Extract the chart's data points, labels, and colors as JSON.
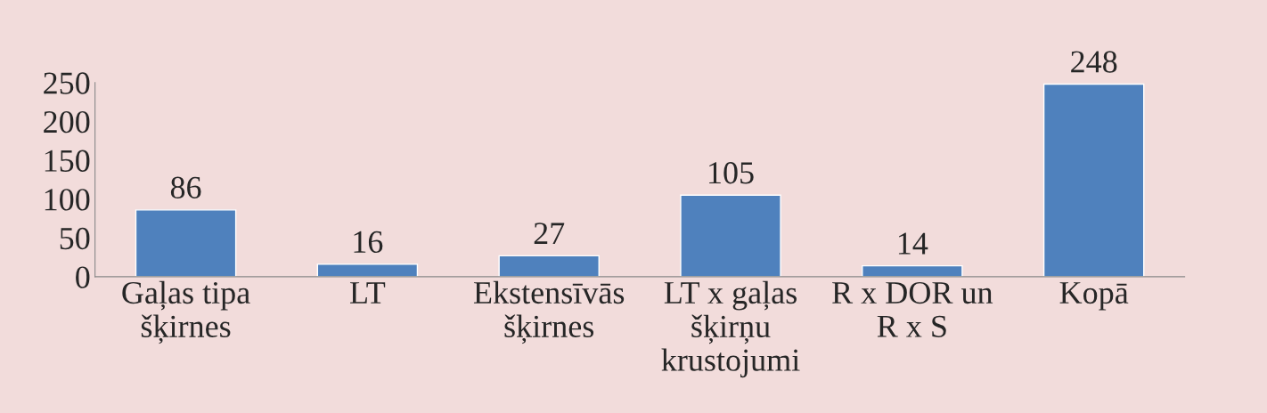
{
  "chart_data": {
    "type": "bar",
    "categories": [
      "Gaļas tipa\nšķirnes",
      "LT",
      "Ekstensīvās\nšķirnes",
      "LT x gaļas\nšķirņu\nkrustojumi",
      "R x DOR un\nR x S",
      "Kopā"
    ],
    "values": [
      86,
      16,
      27,
      105,
      14,
      248
    ],
    "color": "#4f81bd",
    "ylim": [
      0,
      250
    ],
    "yticks": [
      0,
      50,
      100,
      150,
      200,
      250
    ],
    "grid": false,
    "data_labels": true
  }
}
